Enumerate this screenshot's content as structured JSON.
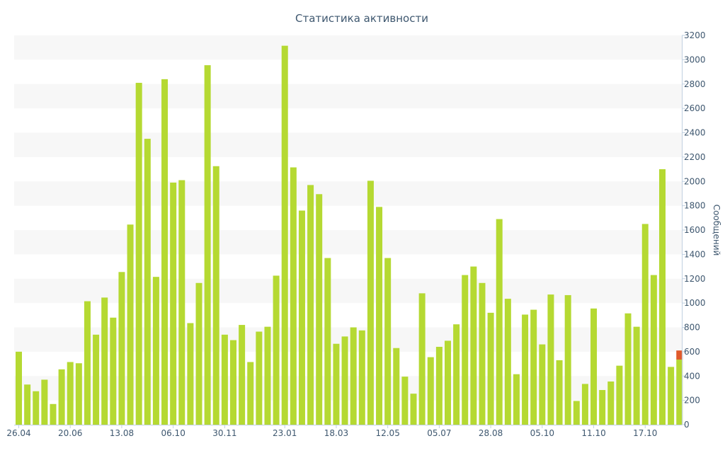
{
  "chart_data": {
    "type": "bar",
    "title": "Статистика активности",
    "ylabel": "Сообщений",
    "xlabel": "",
    "ylim": [
      0,
      3200
    ],
    "y_ticks": [
      0,
      200,
      400,
      600,
      800,
      1000,
      1200,
      1400,
      1600,
      1800,
      2000,
      2200,
      2400,
      2600,
      2800,
      3000,
      3200
    ],
    "y_axis_side": "right",
    "x_tick_labels": [
      "26.04",
      "20.06",
      "13.08",
      "06.10",
      "30.11",
      "23.01",
      "18.03",
      "12.05",
      "05.07",
      "28.08",
      "05.10",
      "11.10",
      "17.10"
    ],
    "x_tick_label_bar_index": [
      0,
      6,
      12,
      18,
      24,
      31,
      37,
      43,
      49,
      55,
      61,
      67,
      73
    ],
    "grid": "alternating horizontal bands",
    "colors": {
      "bar": "#b5d932",
      "highlight": "#e05a2b",
      "text": "#3e576f",
      "band": "#f7f7f7"
    },
    "values": [
      600,
      330,
      275,
      370,
      170,
      455,
      515,
      505,
      1015,
      740,
      1045,
      880,
      1255,
      1645,
      2810,
      2350,
      1215,
      2840,
      1990,
      2010,
      835,
      1165,
      2955,
      2125,
      740,
      695,
      820,
      515,
      765,
      805,
      1225,
      3115,
      2115,
      1760,
      1970,
      1895,
      1370,
      665,
      725,
      800,
      775,
      2005,
      1790,
      1370,
      630,
      395,
      255,
      1080,
      555,
      640,
      690,
      825,
      1230,
      1300,
      1165,
      920,
      1690,
      1035,
      415,
      905,
      945,
      660,
      1070,
      530,
      1065,
      195,
      335,
      955,
      285,
      355,
      485,
      915,
      805,
      1650,
      1230,
      2100,
      475
    ],
    "partial_last": {
      "value": 610,
      "highlight_from": 535
    }
  }
}
